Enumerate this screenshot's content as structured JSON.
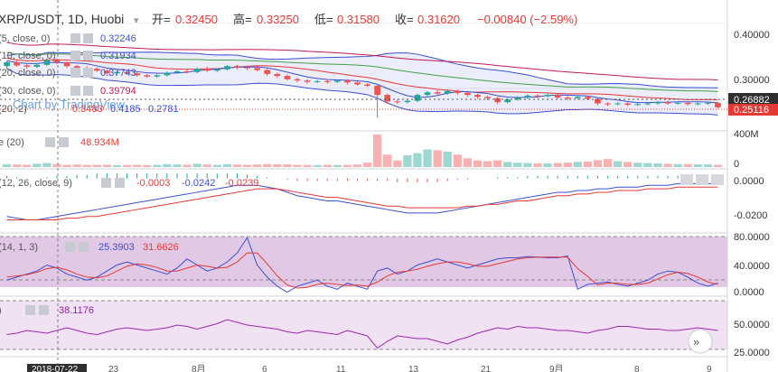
{
  "header": {
    "symbol": "XRP/USDT, 1D, Huobi",
    "open_label": "开=",
    "open": "0.32450",
    "high_label": "高=",
    "high": "0.33250",
    "low_label": "低=",
    "low": "0.31580",
    "close_label": "收=",
    "close": "0.31620",
    "change": "−0.00840 (−2.59%)"
  },
  "overlay_legend": [
    {
      "label": "(5, close, 0)",
      "value": "0.32246",
      "color": "#3b4fd1"
    },
    {
      "label": "(10, close, 0)",
      "value": "0.31934",
      "color": "#3b4fd1"
    },
    {
      "label": "(20, close, 0)",
      "value": "0.37743",
      "color": "#3b4fd1"
    },
    {
      "label": "(30, close, 0)",
      "value": "0.39794",
      "color": "#c2185b"
    },
    {
      "label": "(20, 2)",
      "values": [
        "0.3483",
        "0.4185",
        "0.2781"
      ],
      "colors": [
        "#e53935",
        "#3b4fd1",
        "#3b4fd1"
      ]
    }
  ],
  "watermark": "Chart by TradingView",
  "volume_legend": {
    "label": "e (20)",
    "value": "48.934M"
  },
  "macd_legend": {
    "label": "(12, 26, close, 9)",
    "values": [
      "-0.0003",
      "-0.0242",
      "-0.0239"
    ]
  },
  "stoch_legend": {
    "label": "(14, 1, 3)",
    "values": [
      "25.3903",
      "31.6626"
    ]
  },
  "rsi_legend": {
    "label": ")",
    "value": "38.1176"
  },
  "price_axis": {
    "ticks": [
      "0.40000",
      "0.30000"
    ],
    "current_price": "0.26882",
    "last_price": "0.25116"
  },
  "volume_axis": {
    "ticks": [
      "400M",
      "0"
    ]
  },
  "macd_axis": {
    "ticks": [
      "0.0000",
      "-0.0200"
    ]
  },
  "stoch_axis": {
    "ticks": [
      "80.0000",
      "40.0000",
      "0.0000"
    ]
  },
  "rsi_axis": {
    "ticks": [
      "50.0000",
      "25.0000"
    ]
  },
  "time_axis": {
    "highlight": "2018-07-22",
    "ticks": [
      "23",
      "8月",
      "6",
      "11",
      "13",
      "21",
      "9月",
      "8",
      "9"
    ]
  },
  "colors": {
    "up": "#26a69a",
    "down": "#ef5350",
    "ma_blue": "#3b4fd1",
    "ma_red": "#e53935",
    "ma_magenta": "#c2185b",
    "ma_green": "#43a047",
    "stoch_bg": "#d7b5dc",
    "rsi_bg": "#f0e1f3",
    "purple": "#9c27b0"
  },
  "chart_data": {
    "type": "candlestick",
    "price_ylim": [
      0.235,
      0.435
    ],
    "candles": [
      {
        "o": 0.334,
        "c": 0.34,
        "h": 0.342,
        "l": 0.33
      },
      {
        "o": 0.34,
        "c": 0.335,
        "h": 0.344,
        "l": 0.333
      },
      {
        "o": 0.335,
        "c": 0.333,
        "h": 0.338,
        "l": 0.33
      },
      {
        "o": 0.333,
        "c": 0.336,
        "h": 0.339,
        "l": 0.331
      },
      {
        "o": 0.336,
        "c": 0.343,
        "h": 0.346,
        "l": 0.334
      },
      {
        "o": 0.343,
        "c": 0.34,
        "h": 0.346,
        "l": 0.337
      },
      {
        "o": 0.34,
        "c": 0.334,
        "h": 0.341,
        "l": 0.331
      },
      {
        "o": 0.334,
        "c": 0.331,
        "h": 0.336,
        "l": 0.328
      },
      {
        "o": 0.331,
        "c": 0.33,
        "h": 0.334,
        "l": 0.327
      },
      {
        "o": 0.33,
        "c": 0.327,
        "h": 0.332,
        "l": 0.325
      },
      {
        "o": 0.327,
        "c": 0.323,
        "h": 0.329,
        "l": 0.321
      },
      {
        "o": 0.323,
        "c": 0.325,
        "h": 0.327,
        "l": 0.32
      },
      {
        "o": 0.325,
        "c": 0.323,
        "h": 0.328,
        "l": 0.321
      },
      {
        "o": 0.323,
        "c": 0.32,
        "h": 0.325,
        "l": 0.318
      },
      {
        "o": 0.32,
        "c": 0.318,
        "h": 0.322,
        "l": 0.316
      },
      {
        "o": 0.318,
        "c": 0.32,
        "h": 0.322,
        "l": 0.316
      },
      {
        "o": 0.32,
        "c": 0.324,
        "h": 0.326,
        "l": 0.318
      },
      {
        "o": 0.324,
        "c": 0.326,
        "h": 0.328,
        "l": 0.322
      },
      {
        "o": 0.326,
        "c": 0.325,
        "h": 0.329,
        "l": 0.323
      },
      {
        "o": 0.325,
        "c": 0.33,
        "h": 0.332,
        "l": 0.323
      },
      {
        "o": 0.33,
        "c": 0.327,
        "h": 0.333,
        "l": 0.325
      },
      {
        "o": 0.327,
        "c": 0.329,
        "h": 0.331,
        "l": 0.325
      },
      {
        "o": 0.329,
        "c": 0.334,
        "h": 0.336,
        "l": 0.327
      },
      {
        "o": 0.334,
        "c": 0.332,
        "h": 0.336,
        "l": 0.329
      },
      {
        "o": 0.332,
        "c": 0.331,
        "h": 0.335,
        "l": 0.328
      },
      {
        "o": 0.331,
        "c": 0.328,
        "h": 0.333,
        "l": 0.326
      },
      {
        "o": 0.328,
        "c": 0.322,
        "h": 0.33,
        "l": 0.319
      },
      {
        "o": 0.322,
        "c": 0.319,
        "h": 0.324,
        "l": 0.316
      },
      {
        "o": 0.319,
        "c": 0.314,
        "h": 0.321,
        "l": 0.312
      },
      {
        "o": 0.314,
        "c": 0.312,
        "h": 0.316,
        "l": 0.309
      },
      {
        "o": 0.312,
        "c": 0.31,
        "h": 0.314,
        "l": 0.307
      },
      {
        "o": 0.31,
        "c": 0.311,
        "h": 0.313,
        "l": 0.308
      },
      {
        "o": 0.311,
        "c": 0.31,
        "h": 0.313,
        "l": 0.307
      },
      {
        "o": 0.31,
        "c": 0.312,
        "h": 0.314,
        "l": 0.308
      },
      {
        "o": 0.312,
        "c": 0.309,
        "h": 0.314,
        "l": 0.306
      },
      {
        "o": 0.309,
        "c": 0.306,
        "h": 0.311,
        "l": 0.304
      },
      {
        "o": 0.306,
        "c": 0.304,
        "h": 0.308,
        "l": 0.302
      },
      {
        "o": 0.304,
        "c": 0.29,
        "h": 0.305,
        "l": 0.255
      },
      {
        "o": 0.29,
        "c": 0.28,
        "h": 0.292,
        "l": 0.276
      },
      {
        "o": 0.28,
        "c": 0.279,
        "h": 0.283,
        "l": 0.276
      },
      {
        "o": 0.279,
        "c": 0.281,
        "h": 0.284,
        "l": 0.277
      },
      {
        "o": 0.281,
        "c": 0.29,
        "h": 0.292,
        "l": 0.279
      },
      {
        "o": 0.29,
        "c": 0.294,
        "h": 0.296,
        "l": 0.287
      },
      {
        "o": 0.294,
        "c": 0.292,
        "h": 0.297,
        "l": 0.289
      },
      {
        "o": 0.292,
        "c": 0.296,
        "h": 0.299,
        "l": 0.29
      },
      {
        "o": 0.296,
        "c": 0.293,
        "h": 0.298,
        "l": 0.29
      },
      {
        "o": 0.293,
        "c": 0.29,
        "h": 0.295,
        "l": 0.287
      },
      {
        "o": 0.29,
        "c": 0.287,
        "h": 0.292,
        "l": 0.284
      },
      {
        "o": 0.287,
        "c": 0.285,
        "h": 0.289,
        "l": 0.282
      },
      {
        "o": 0.285,
        "c": 0.279,
        "h": 0.287,
        "l": 0.276
      },
      {
        "o": 0.279,
        "c": 0.283,
        "h": 0.285,
        "l": 0.277
      },
      {
        "o": 0.283,
        "c": 0.286,
        "h": 0.288,
        "l": 0.281
      },
      {
        "o": 0.286,
        "c": 0.289,
        "h": 0.291,
        "l": 0.284
      },
      {
        "o": 0.289,
        "c": 0.288,
        "h": 0.291,
        "l": 0.285
      },
      {
        "o": 0.288,
        "c": 0.29,
        "h": 0.292,
        "l": 0.286
      },
      {
        "o": 0.29,
        "c": 0.286,
        "h": 0.292,
        "l": 0.284
      },
      {
        "o": 0.286,
        "c": 0.285,
        "h": 0.288,
        "l": 0.282
      },
      {
        "o": 0.285,
        "c": 0.287,
        "h": 0.289,
        "l": 0.283
      },
      {
        "o": 0.287,
        "c": 0.284,
        "h": 0.289,
        "l": 0.282
      },
      {
        "o": 0.284,
        "c": 0.277,
        "h": 0.286,
        "l": 0.274
      },
      {
        "o": 0.277,
        "c": 0.276,
        "h": 0.279,
        "l": 0.273
      },
      {
        "o": 0.276,
        "c": 0.277,
        "h": 0.279,
        "l": 0.274
      },
      {
        "o": 0.277,
        "c": 0.275,
        "h": 0.279,
        "l": 0.273
      },
      {
        "o": 0.275,
        "c": 0.276,
        "h": 0.278,
        "l": 0.273
      },
      {
        "o": 0.276,
        "c": 0.277,
        "h": 0.279,
        "l": 0.274
      },
      {
        "o": 0.277,
        "c": 0.279,
        "h": 0.281,
        "l": 0.275
      },
      {
        "o": 0.279,
        "c": 0.277,
        "h": 0.281,
        "l": 0.275
      },
      {
        "o": 0.277,
        "c": 0.278,
        "h": 0.28,
        "l": 0.275
      },
      {
        "o": 0.278,
        "c": 0.276,
        "h": 0.28,
        "l": 0.274
      },
      {
        "o": 0.276,
        "c": 0.277,
        "h": 0.279,
        "l": 0.274
      },
      {
        "o": 0.277,
        "c": 0.278,
        "h": 0.28,
        "l": 0.275
      },
      {
        "o": 0.278,
        "c": 0.271,
        "h": 0.279,
        "l": 0.269
      }
    ],
    "volume_ylim": [
      0,
      470
    ],
    "volumes": [
      40,
      35,
      30,
      45,
      55,
      40,
      30,
      35,
      28,
      30,
      30,
      25,
      28,
      30,
      25,
      30,
      40,
      35,
      30,
      45,
      35,
      30,
      40,
      35,
      30,
      35,
      40,
      38,
      36,
      30,
      28,
      26,
      30,
      28,
      30,
      35,
      60,
      445,
      170,
      90,
      160,
      190,
      240,
      230,
      210,
      170,
      120,
      90,
      80,
      90,
      70,
      60,
      55,
      50,
      50,
      55,
      60,
      70,
      75,
      95,
      110,
      80,
      70,
      60,
      55,
      50,
      45,
      40,
      40,
      38,
      36,
      30
    ],
    "macd_ylim": [
      -0.03,
      0.004
    ],
    "macd_line": [
      -0.022,
      -0.023,
      -0.024,
      -0.024,
      -0.023,
      -0.022,
      -0.021,
      -0.02,
      -0.019,
      -0.018,
      -0.017,
      -0.016,
      -0.015,
      -0.014,
      -0.013,
      -0.012,
      -0.011,
      -0.01,
      -0.009,
      -0.008,
      -0.007,
      -0.006,
      -0.005,
      -0.004,
      -0.004,
      -0.004,
      -0.005,
      -0.006,
      -0.008,
      -0.01,
      -0.011,
      -0.012,
      -0.013,
      -0.013,
      -0.014,
      -0.015,
      -0.016,
      -0.017,
      -0.018,
      -0.019,
      -0.02,
      -0.02,
      -0.02,
      -0.02,
      -0.019,
      -0.018,
      -0.017,
      -0.016,
      -0.015,
      -0.014,
      -0.013,
      -0.012,
      -0.011,
      -0.01,
      -0.009,
      -0.008,
      -0.008,
      -0.007,
      -0.007,
      -0.006,
      -0.006,
      -0.005,
      -0.005,
      -0.005,
      -0.004,
      -0.004,
      -0.004,
      -0.003,
      -0.003,
      -0.003,
      -0.003,
      -0.003
    ],
    "macd_signal": [
      -0.024,
      -0.024,
      -0.024,
      -0.024,
      -0.024,
      -0.024,
      -0.023,
      -0.023,
      -0.022,
      -0.022,
      -0.021,
      -0.02,
      -0.019,
      -0.018,
      -0.017,
      -0.016,
      -0.015,
      -0.014,
      -0.013,
      -0.012,
      -0.011,
      -0.01,
      -0.009,
      -0.008,
      -0.007,
      -0.006,
      -0.006,
      -0.006,
      -0.007,
      -0.008,
      -0.009,
      -0.01,
      -0.011,
      -0.011,
      -0.012,
      -0.013,
      -0.014,
      -0.015,
      -0.016,
      -0.016,
      -0.017,
      -0.017,
      -0.017,
      -0.017,
      -0.017,
      -0.017,
      -0.016,
      -0.016,
      -0.015,
      -0.015,
      -0.014,
      -0.013,
      -0.013,
      -0.012,
      -0.011,
      -0.01,
      -0.01,
      -0.009,
      -0.009,
      -0.008,
      -0.008,
      -0.007,
      -0.007,
      -0.007,
      -0.006,
      -0.006,
      -0.006,
      -0.005,
      -0.005,
      -0.005,
      -0.005,
      -0.005
    ],
    "stoch_ylim": [
      0,
      100
    ],
    "stoch_k": [
      25,
      30,
      35,
      40,
      50,
      45,
      35,
      30,
      25,
      30,
      40,
      50,
      55,
      50,
      45,
      40,
      35,
      45,
      60,
      50,
      40,
      45,
      55,
      70,
      95,
      50,
      30,
      15,
      5,
      15,
      20,
      25,
      15,
      10,
      20,
      15,
      10,
      40,
      45,
      35,
      40,
      50,
      55,
      60,
      55,
      50,
      45,
      50,
      55,
      60,
      62,
      62,
      64,
      63,
      62,
      62,
      65,
      10,
      18,
      20,
      22,
      18,
      15,
      20,
      25,
      35,
      40,
      38,
      30,
      20,
      15,
      20
    ],
    "stoch_d": [
      30,
      32,
      34,
      38,
      44,
      46,
      42,
      35,
      30,
      29,
      32,
      40,
      48,
      52,
      50,
      46,
      40,
      40,
      45,
      50,
      48,
      45,
      46,
      55,
      70,
      70,
      52,
      32,
      17,
      12,
      13,
      18,
      20,
      18,
      16,
      17,
      15,
      22,
      32,
      38,
      40,
      43,
      48,
      52,
      55,
      55,
      52,
      48,
      48,
      52,
      56,
      60,
      62,
      63,
      63,
      63,
      63,
      44,
      31,
      17,
      20,
      20,
      18,
      18,
      20,
      27,
      34,
      38,
      36,
      30,
      22,
      18
    ],
    "rsi_ylim": [
      20,
      62
    ],
    "rsi": [
      35,
      36,
      38,
      37,
      36,
      38,
      40,
      38,
      36,
      35,
      37,
      39,
      40,
      39,
      38,
      39,
      40,
      42,
      41,
      39,
      41,
      43,
      46,
      44,
      42,
      41,
      40,
      39,
      37,
      36,
      38,
      37,
      36,
      35,
      38,
      36,
      34,
      25,
      30,
      34,
      33,
      32,
      32,
      30,
      28,
      31,
      33,
      36,
      38,
      40,
      39,
      41,
      40,
      40,
      39,
      38,
      38,
      37,
      36,
      38,
      39,
      41,
      41,
      40,
      39,
      39,
      38,
      38,
      39,
      40,
      39,
      38
    ]
  }
}
